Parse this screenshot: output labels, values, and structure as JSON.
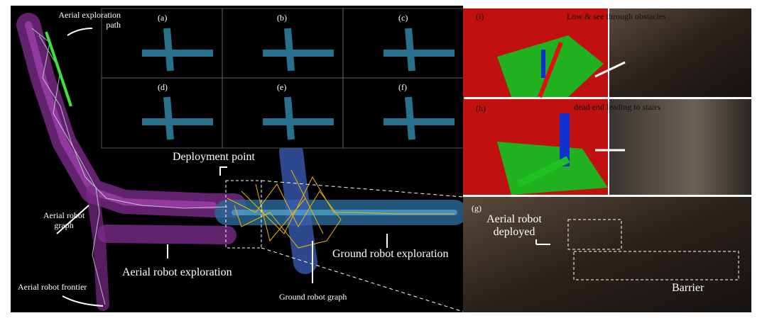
{
  "left_panel": {
    "aerial_exploration_path": "Aerial exploration path",
    "deployment_point": "Deployment point",
    "aerial_robot_graph": "Aerial robot graph",
    "aerial_robot_exploration": "Aerial robot exploration",
    "ground_robot_exploration": "Ground robot exploration",
    "ground_robot_graph": "Ground robot graph",
    "aerial_robot_frontier": "Aerial robot frontier",
    "insets": [
      "(a)",
      "(b)",
      "(c)",
      "(d)",
      "(e)",
      "(f)"
    ]
  },
  "right_panels": {
    "i": {
      "label": "(i)",
      "caption": "Low & see through obstacles"
    },
    "h": {
      "label": "(h)",
      "caption": "dead end leading to stairs"
    },
    "g": {
      "label": "(g)",
      "caption": "Aerial robot deployed",
      "barrier": "Barrier"
    }
  }
}
